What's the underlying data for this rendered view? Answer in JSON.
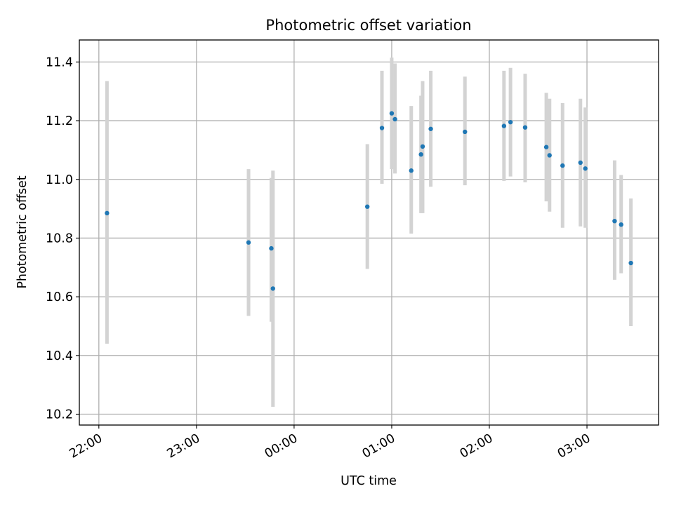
{
  "chart_data": {
    "type": "scatter",
    "title": "Photometric offset variation",
    "xlabel": "UTC time",
    "ylabel": "Photometric offset",
    "grid": true,
    "x_ticks": [
      "22:00",
      "23:00",
      "00:00",
      "01:00",
      "02:00",
      "03:00"
    ],
    "y_ticks": [
      "10.2",
      "10.4",
      "10.6",
      "10.8",
      "11.0",
      "11.2",
      "11.4"
    ],
    "ylim": [
      10.163,
      11.475
    ],
    "xlim": [
      "21:48",
      "03:44"
    ],
    "colors": {
      "marker": "#1f77b4",
      "errorbar": "#d3d3d3",
      "grid": "#b0b0b0"
    },
    "points": [
      {
        "x": "22:05",
        "y": 10.885,
        "y_low": 10.44,
        "y_high": 11.335
      },
      {
        "x": "23:32",
        "y": 10.785,
        "y_low": 10.535,
        "y_high": 11.035
      },
      {
        "x": "23:46",
        "y": 10.765,
        "y_low": 10.515,
        "y_high": 11.005
      },
      {
        "x": "23:47",
        "y": 10.628,
        "y_low": 10.225,
        "y_high": 11.03
      },
      {
        "x": "00:45",
        "y": 10.907,
        "y_low": 10.695,
        "y_high": 11.12
      },
      {
        "x": "00:54",
        "y": 11.175,
        "y_low": 10.985,
        "y_high": 11.37
      },
      {
        "x": "01:00",
        "y": 11.225,
        "y_low": 11.035,
        "y_high": 11.415
      },
      {
        "x": "01:02",
        "y": 11.205,
        "y_low": 11.02,
        "y_high": 11.395
      },
      {
        "x": "01:12",
        "y": 11.03,
        "y_low": 10.815,
        "y_high": 11.25
      },
      {
        "x": "01:18",
        "y": 11.085,
        "y_low": 10.885,
        "y_high": 11.285
      },
      {
        "x": "01:19",
        "y": 11.112,
        "y_low": 10.885,
        "y_high": 11.335
      },
      {
        "x": "01:24",
        "y": 11.172,
        "y_low": 10.975,
        "y_high": 11.37
      },
      {
        "x": "01:45",
        "y": 11.162,
        "y_low": 10.98,
        "y_high": 11.35
      },
      {
        "x": "02:09",
        "y": 11.182,
        "y_low": 10.995,
        "y_high": 11.37
      },
      {
        "x": "02:13",
        "y": 11.195,
        "y_low": 11.01,
        "y_high": 11.38
      },
      {
        "x": "02:22",
        "y": 11.177,
        "y_low": 10.99,
        "y_high": 11.36
      },
      {
        "x": "02:35",
        "y": 11.11,
        "y_low": 10.925,
        "y_high": 11.295
      },
      {
        "x": "02:37",
        "y": 11.082,
        "y_low": 10.89,
        "y_high": 11.275
      },
      {
        "x": "02:45",
        "y": 11.047,
        "y_low": 10.835,
        "y_high": 11.26
      },
      {
        "x": "02:56",
        "y": 11.057,
        "y_low": 10.84,
        "y_high": 11.275
      },
      {
        "x": "02:59",
        "y": 11.037,
        "y_low": 10.835,
        "y_high": 11.245
      },
      {
        "x": "03:17",
        "y": 10.858,
        "y_low": 10.658,
        "y_high": 11.065
      },
      {
        "x": "03:21",
        "y": 10.846,
        "y_low": 10.68,
        "y_high": 11.015
      },
      {
        "x": "03:27",
        "y": 10.715,
        "y_low": 10.5,
        "y_high": 10.935
      }
    ]
  }
}
